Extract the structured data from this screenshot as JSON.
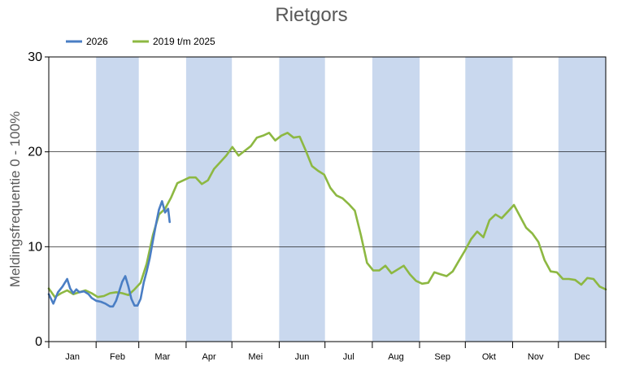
{
  "chart_data": {
    "type": "line",
    "title": "Rietgors",
    "ylabel": "Meldingsfrequentie 0 - 100%",
    "xlabel": "",
    "ylim": [
      0,
      30
    ],
    "yticks": [
      "0",
      "10",
      "20",
      "30"
    ],
    "grid": "horizontal",
    "legend_placement": "top-left",
    "months": [
      "Jan",
      "Feb",
      "Mar",
      "Apr",
      "Mei",
      "Jun",
      "Jul",
      "Aug",
      "Sep",
      "Okt",
      "Nov",
      "Dec"
    ],
    "shaded_months": [
      "Feb",
      "Apr",
      "Jun",
      "Aug",
      "Okt",
      "Dec"
    ],
    "shade_color": "#c9d8ee",
    "x_unit": "day of year",
    "series": [
      {
        "name": "2026",
        "color": "#4a7ec4",
        "points": [
          [
            1,
            5.0
          ],
          [
            4,
            4.0
          ],
          [
            7,
            5.2
          ],
          [
            10,
            5.8
          ],
          [
            13,
            6.6
          ],
          [
            15,
            5.6
          ],
          [
            17,
            5.1
          ],
          [
            19,
            5.5
          ],
          [
            21,
            5.2
          ],
          [
            24,
            5.3
          ],
          [
            27,
            5.0
          ],
          [
            29,
            4.6
          ],
          [
            32,
            4.3
          ],
          [
            35,
            4.2
          ],
          [
            38,
            4.0
          ],
          [
            41,
            3.7
          ],
          [
            43,
            3.7
          ],
          [
            45,
            4.3
          ],
          [
            47,
            5.3
          ],
          [
            49,
            6.3
          ],
          [
            51,
            6.9
          ],
          [
            53,
            5.8
          ],
          [
            55,
            4.5
          ],
          [
            57,
            3.8
          ],
          [
            59,
            3.8
          ],
          [
            61,
            4.5
          ],
          [
            63,
            6.2
          ],
          [
            65,
            7.4
          ],
          [
            67,
            8.8
          ],
          [
            69,
            10.6
          ],
          [
            71,
            12.3
          ],
          [
            73,
            13.9
          ],
          [
            75,
            14.8
          ],
          [
            77,
            13.6
          ],
          [
            79,
            14.0
          ],
          [
            80,
            12.6
          ]
        ]
      },
      {
        "name": "2019 t/m 2025",
        "color": "#8db842",
        "points": [
          [
            1,
            5.6
          ],
          [
            5,
            4.7
          ],
          [
            9,
            5.1
          ],
          [
            13,
            5.4
          ],
          [
            17,
            5.0
          ],
          [
            21,
            5.2
          ],
          [
            25,
            5.4
          ],
          [
            29,
            5.1
          ],
          [
            33,
            4.7
          ],
          [
            37,
            4.8
          ],
          [
            41,
            5.1
          ],
          [
            45,
            5.2
          ],
          [
            49,
            5.1
          ],
          [
            53,
            4.9
          ],
          [
            57,
            5.5
          ],
          [
            61,
            6.2
          ],
          [
            65,
            8.2
          ],
          [
            69,
            11.2
          ],
          [
            73,
            13.4
          ],
          [
            77,
            14.0
          ],
          [
            81,
            15.2
          ],
          [
            85,
            16.7
          ],
          [
            89,
            17.0
          ],
          [
            93,
            17.3
          ],
          [
            97,
            17.3
          ],
          [
            101,
            16.6
          ],
          [
            105,
            17.0
          ],
          [
            109,
            18.2
          ],
          [
            113,
            18.9
          ],
          [
            117,
            19.6
          ],
          [
            121,
            20.5
          ],
          [
            125,
            19.6
          ],
          [
            129,
            20.1
          ],
          [
            133,
            20.6
          ],
          [
            137,
            21.5
          ],
          [
            141,
            21.7
          ],
          [
            145,
            22.0
          ],
          [
            149,
            21.2
          ],
          [
            153,
            21.7
          ],
          [
            157,
            22.0
          ],
          [
            161,
            21.5
          ],
          [
            165,
            21.6
          ],
          [
            169,
            20.1
          ],
          [
            173,
            18.5
          ],
          [
            177,
            18.0
          ],
          [
            181,
            17.6
          ],
          [
            185,
            16.2
          ],
          [
            189,
            15.4
          ],
          [
            193,
            15.1
          ],
          [
            197,
            14.5
          ],
          [
            201,
            13.8
          ],
          [
            205,
            11.2
          ],
          [
            209,
            8.3
          ],
          [
            213,
            7.5
          ],
          [
            217,
            7.5
          ],
          [
            221,
            8.0
          ],
          [
            225,
            7.2
          ],
          [
            229,
            7.6
          ],
          [
            233,
            8.0
          ],
          [
            237,
            7.1
          ],
          [
            241,
            6.4
          ],
          [
            245,
            6.1
          ],
          [
            249,
            6.2
          ],
          [
            253,
            7.3
          ],
          [
            257,
            7.1
          ],
          [
            261,
            6.9
          ],
          [
            265,
            7.4
          ],
          [
            269,
            8.5
          ],
          [
            273,
            9.6
          ],
          [
            277,
            10.8
          ],
          [
            281,
            11.6
          ],
          [
            285,
            11.0
          ],
          [
            289,
            12.8
          ],
          [
            293,
            13.4
          ],
          [
            297,
            13.0
          ],
          [
            301,
            13.7
          ],
          [
            305,
            14.4
          ],
          [
            309,
            13.2
          ],
          [
            313,
            12.0
          ],
          [
            317,
            11.4
          ],
          [
            321,
            10.5
          ],
          [
            325,
            8.6
          ],
          [
            329,
            7.4
          ],
          [
            333,
            7.3
          ],
          [
            337,
            6.6
          ],
          [
            341,
            6.6
          ],
          [
            345,
            6.5
          ],
          [
            349,
            6.0
          ],
          [
            353,
            6.7
          ],
          [
            357,
            6.6
          ],
          [
            361,
            5.8
          ],
          [
            365,
            5.5
          ]
        ]
      }
    ]
  }
}
